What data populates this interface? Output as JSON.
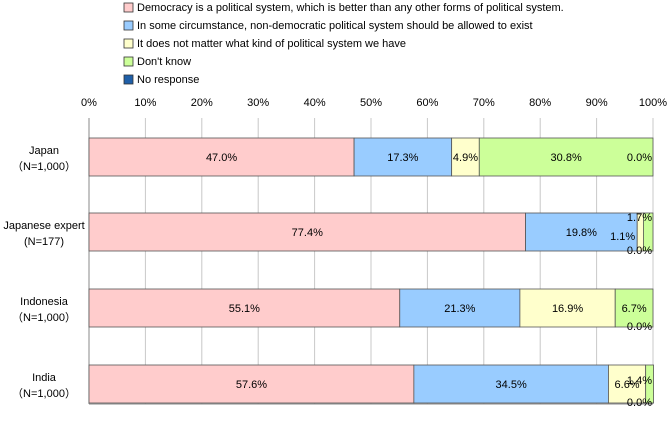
{
  "chart_data": {
    "type": "bar",
    "orientation": "horizontal",
    "stacked": true,
    "title": "",
    "xlabel": "",
    "ylabel": "",
    "xlim": [
      0,
      100
    ],
    "x_ticks": [
      "0%",
      "10%",
      "20%",
      "30%",
      "40%",
      "50%",
      "60%",
      "70%",
      "80%",
      "90%",
      "100%"
    ],
    "grid": true,
    "legend_position": "top",
    "categories": [
      {
        "line1": "Japan",
        "line2": "（N=1,000）"
      },
      {
        "line1": "Japanese expert",
        "line2": "(N=177)"
      },
      {
        "line1": "Indonesia",
        "line2": "（N=1,000）"
      },
      {
        "line1": "India",
        "line2": "（N=1,000）"
      }
    ],
    "series": [
      {
        "name": "Democracy is a political system, which is better than any other forms of political system.",
        "color": "#FFCCCC",
        "values": [
          47.0,
          77.4,
          55.1,
          57.6
        ],
        "labels": [
          "47.0%",
          "77.4%",
          "55.1%",
          "57.6%"
        ]
      },
      {
        "name": "In some circumstance, non-democratic political system should be allowed to exist",
        "color": "#99CCFF",
        "values": [
          17.3,
          19.8,
          21.3,
          34.5
        ],
        "labels": [
          "17.3%",
          "19.8%",
          "21.3%",
          "34.5%"
        ]
      },
      {
        "name": "It does not matter what kind of political system we have",
        "color": "#FFFFCC",
        "values": [
          4.9,
          1.1,
          16.9,
          6.6
        ],
        "labels": [
          "4.9%",
          "1.1%",
          "16.9%",
          "6.6%"
        ]
      },
      {
        "name": "Don't know",
        "color": "#CCFF99",
        "values": [
          30.8,
          1.7,
          6.7,
          1.4
        ],
        "labels": [
          "30.8%",
          "1.7%",
          "6.7%",
          "1.4%"
        ]
      },
      {
        "name": "No response",
        "color": "#1F5FA8",
        "values": [
          0.0,
          0.0,
          0.0,
          0.0
        ],
        "labels": [
          "0.0%",
          "0.0%",
          "0.0%",
          "0.0%"
        ]
      }
    ]
  }
}
